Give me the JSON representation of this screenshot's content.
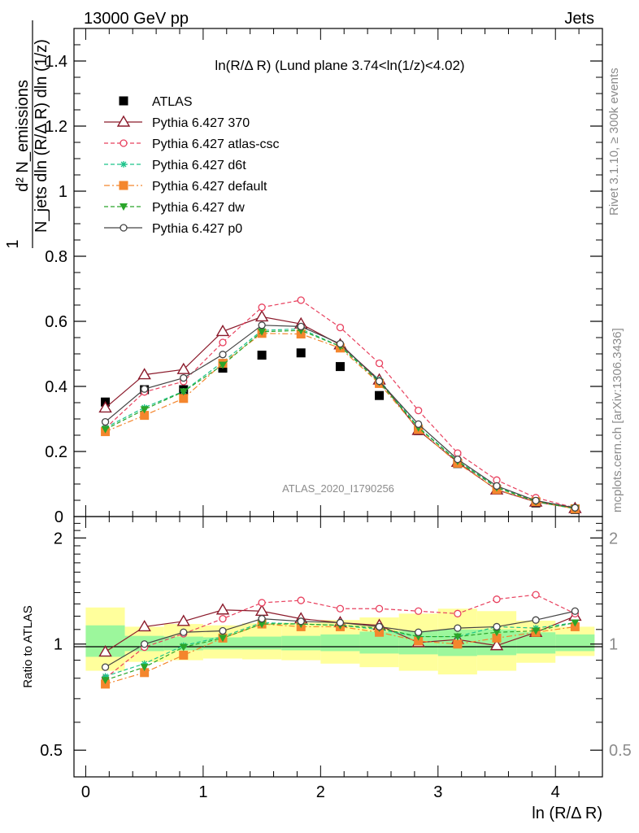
{
  "header": {
    "left": "13000 GeV pp",
    "right": "Jets"
  },
  "side_text": {
    "rivet": "Rivet 3.1.10, ≥ 300k events",
    "mcplots": "mcplots.cern.ch [arXiv:1306.3436]"
  },
  "chart_data": [
    {
      "type": "scatter",
      "panel": "main",
      "title": "ln(R/Δ R) (Lund plane 3.74<ln(1/z)<4.02)",
      "watermark": "ATLAS_2020_I1790256",
      "ylabel_lines": [
        "1",
        "N_jets dln (R/Δ R) dln (1/z)",
        "d² N_emissions"
      ],
      "ylim": [
        0,
        1.5
      ],
      "xlim": [
        -0.1,
        4.4
      ],
      "yticks": [
        0.2,
        0.4,
        0.6,
        0.8,
        1,
        1.2,
        1.4
      ],
      "legend_position": "top-left",
      "x": [
        0.167,
        0.5,
        0.833,
        1.167,
        1.5,
        1.833,
        2.167,
        2.5,
        2.833,
        3.167,
        3.5,
        3.833,
        4.167
      ],
      "series": [
        {
          "name": "ATLAS",
          "color": "#000000",
          "marker": "square",
          "line": "none",
          "values": [
            0.352,
            0.39,
            0.39,
            0.456,
            0.496,
            0.503,
            0.461,
            0.372,
            0.264,
            0.163,
            0.083,
            0.042,
            0.022
          ]
        },
        {
          "name": "Pythia 6.427 370",
          "color": "#8b1a2b",
          "marker": "triangle-open",
          "line": "solid",
          "values": [
            0.334,
            0.436,
            0.452,
            0.569,
            0.614,
            0.592,
            0.528,
            0.42,
            0.265,
            0.167,
            0.082,
            0.045,
            0.025
          ]
        },
        {
          "name": "Pythia 6.427 atlas-csc",
          "color": "#e8405e",
          "marker": "circle-open",
          "line": "dashed",
          "values": [
            0.271,
            0.383,
            0.415,
            0.535,
            0.643,
            0.665,
            0.581,
            0.471,
            0.326,
            0.195,
            0.112,
            0.058,
            0.027
          ]
        },
        {
          "name": "Pythia 6.427 d6t",
          "color": "#1cc38a",
          "marker": "asterisk",
          "line": "dashed",
          "values": [
            0.273,
            0.335,
            0.385,
            0.475,
            0.572,
            0.577,
            0.523,
            0.42,
            0.275,
            0.171,
            0.092,
            0.046,
            0.024
          ]
        },
        {
          "name": "Pythia 6.427 default",
          "color": "#f4862d",
          "marker": "square",
          "line": "dashdot",
          "values": [
            0.261,
            0.311,
            0.363,
            0.471,
            0.563,
            0.561,
            0.518,
            0.409,
            0.268,
            0.164,
            0.083,
            0.046,
            0.024
          ]
        },
        {
          "name": "Pythia 6.427 dw",
          "color": "#2aa52a",
          "marker": "triangle-down",
          "line": "dashed",
          "values": [
            0.268,
            0.329,
            0.384,
            0.466,
            0.568,
            0.572,
            0.523,
            0.413,
            0.273,
            0.17,
            0.089,
            0.046,
            0.025
          ]
        },
        {
          "name": "Pythia 6.427 p0",
          "color": "#444444",
          "marker": "circle-open",
          "line": "solid",
          "values": [
            0.291,
            0.392,
            0.426,
            0.498,
            0.588,
            0.584,
            0.531,
            0.416,
            0.284,
            0.176,
            0.094,
            0.049,
            0.027
          ]
        }
      ]
    },
    {
      "type": "scatter",
      "panel": "ratio",
      "ylabel": "Ratio to ATLAS",
      "xlabel": "ln (R/Δ R)",
      "ylim": [
        0.42,
        2.3
      ],
      "scale": "log",
      "yticks": [
        0.5,
        1,
        2
      ],
      "xticks": [
        0,
        1,
        2,
        3,
        4
      ],
      "bands": {
        "bin_edges": [
          0,
          0.333,
          0.667,
          1,
          1.333,
          1.667,
          2,
          2.333,
          2.667,
          3,
          3.333,
          3.667,
          4,
          4.333
        ],
        "stat_green": [
          [
            0.92,
            1.13
          ],
          [
            0.955,
            1.055
          ],
          [
            0.96,
            1.05
          ],
          [
            0.965,
            1.045
          ],
          [
            0.965,
            1.05
          ],
          [
            0.96,
            1.055
          ],
          [
            0.955,
            1.065
          ],
          [
            0.94,
            1.085
          ],
          [
            0.935,
            1.09
          ],
          [
            0.925,
            1.1
          ],
          [
            0.93,
            1.1
          ],
          [
            0.94,
            1.08
          ],
          [
            0.955,
            1.065
          ]
        ],
        "total_yellow": [
          [
            0.84,
            1.27
          ],
          [
            0.89,
            1.12
          ],
          [
            0.9,
            1.14
          ],
          [
            0.91,
            1.13
          ],
          [
            0.905,
            1.145
          ],
          [
            0.9,
            1.15
          ],
          [
            0.88,
            1.17
          ],
          [
            0.86,
            1.19
          ],
          [
            0.84,
            1.22
          ],
          [
            0.82,
            1.26
          ],
          [
            0.84,
            1.24
          ],
          [
            0.885,
            1.165
          ],
          [
            0.925,
            1.12
          ]
        ]
      },
      "x": [
        0.167,
        0.5,
        0.833,
        1.167,
        1.5,
        1.833,
        2.167,
        2.5,
        2.833,
        3.167,
        3.5,
        3.833,
        4.167
      ],
      "series": [
        {
          "name": "Pythia 6.427 370",
          "color": "#8b1a2b",
          "marker": "triangle-open",
          "line": "solid",
          "values": [
            0.95,
            1.12,
            1.16,
            1.25,
            1.24,
            1.18,
            1.15,
            1.13,
            1.01,
            1.03,
            0.99,
            1.08,
            1.2
          ]
        },
        {
          "name": "Pythia 6.427 atlas-csc",
          "color": "#e8405e",
          "marker": "circle-open",
          "line": "dashed",
          "values": [
            0.8,
            0.98,
            1.07,
            1.18,
            1.31,
            1.33,
            1.26,
            1.26,
            1.24,
            1.22,
            1.34,
            1.38,
            1.22
          ]
        },
        {
          "name": "Pythia 6.427 d6t",
          "color": "#1cc38a",
          "marker": "asterisk",
          "line": "dashed",
          "values": [
            0.81,
            0.88,
            0.99,
            1.05,
            1.15,
            1.14,
            1.13,
            1.1,
            1.05,
            1.05,
            1.12,
            1.11,
            1.15
          ]
        },
        {
          "name": "Pythia 6.427 default",
          "color": "#f4862d",
          "marker": "square",
          "line": "dashdot",
          "values": [
            0.77,
            0.83,
            0.93,
            1.04,
            1.14,
            1.12,
            1.12,
            1.08,
            1.02,
            1.0,
            1.04,
            1.08,
            1.12
          ]
        },
        {
          "name": "Pythia 6.427 dw",
          "color": "#2aa52a",
          "marker": "triangle-down",
          "line": "dashed",
          "values": [
            0.79,
            0.86,
            0.98,
            1.04,
            1.14,
            1.14,
            1.13,
            1.11,
            1.05,
            1.05,
            1.08,
            1.09,
            1.15
          ]
        },
        {
          "name": "Pythia 6.427 p0",
          "color": "#444444",
          "marker": "circle-open",
          "line": "solid",
          "values": [
            0.86,
            1.0,
            1.08,
            1.09,
            1.18,
            1.16,
            1.15,
            1.12,
            1.08,
            1.11,
            1.12,
            1.17,
            1.24
          ]
        }
      ]
    }
  ]
}
